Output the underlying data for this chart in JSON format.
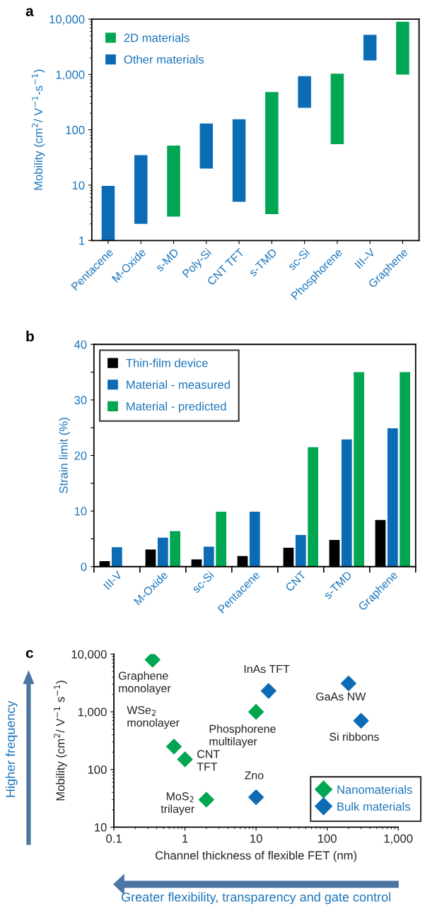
{
  "chart_data": [
    {
      "type": "bar",
      "title": "a",
      "ylabel": "Mobility (cm$^{2}$/ V$^{−1}$-s$^{−1}$)",
      "log": "y",
      "categories": [
        "Pentacene",
        "M-Oxide",
        "s-MD",
        "Poly-Si",
        "CNT TFT",
        "s-TMD",
        "sc-Si",
        "Phosphorene",
        "III–V",
        "Graphene"
      ],
      "series": [
        {
          "name": "2D materials",
          "color": "#00a651",
          "base": [
            null,
            null,
            2.7,
            null,
            null,
            3,
            null,
            55,
            null,
            1000
          ],
          "values": [
            null,
            null,
            49.3,
            null,
            null,
            477,
            null,
            975,
            null,
            8000
          ]
        },
        {
          "name": "Other materials",
          "color": "#0b6cb5",
          "base": [
            1,
            2,
            null,
            20,
            5,
            null,
            250,
            null,
            1800,
            null
          ],
          "values": [
            8.7,
            33,
            null,
            110,
            150,
            null,
            680,
            null,
            3400,
            null
          ]
        }
      ],
      "ylim": [
        1,
        10000
      ],
      "yticks": [
        1,
        10,
        100,
        {
          "value": 1000,
          "label": "1,000"
        },
        {
          "value": 10000,
          "label": "10,000"
        }
      ],
      "legend": "top left"
    },
    {
      "type": "bar",
      "title": "b",
      "ylabel": "Strain limit (%)",
      "categories": [
        "III-V",
        "M-Oxide",
        "sc-Si",
        "Pentacene",
        "CNT",
        "s-TMD",
        "Graphene"
      ],
      "series": [
        {
          "name": "Thin-film device",
          "color": "#000000",
          "values": [
            1.0,
            3.1,
            1.3,
            1.9,
            3.4,
            4.8,
            8.4
          ]
        },
        {
          "name": "Material - measured",
          "color": "#0b6cb5",
          "values": [
            3.5,
            5.2,
            3.6,
            9.9,
            5.7,
            22.9,
            24.9
          ]
        },
        {
          "name": "Material - predicted",
          "color": "#00a651",
          "values": [
            null,
            6.4,
            9.9,
            null,
            21.5,
            35,
            35
          ]
        }
      ],
      "ylim": [
        0,
        40
      ],
      "yticks": [
        0,
        {
          "value": 5,
          "label": null
        },
        10,
        {
          "value": 15,
          "label": null
        },
        20,
        {
          "value": 25,
          "label": null
        },
        30,
        {
          "value": 35,
          "label": null
        },
        40
      ],
      "legend": "top left"
    },
    {
      "type": "scatter",
      "title": "c",
      "xlabel": "Channel thickness of flexible FET (nm)",
      "ylabel": "Mobility (cm$^{2}$/ V$^{−1}$ s$^{−1}$)",
      "log": "xy",
      "marker": "diamond",
      "series": [
        {
          "name": "Nanomaterials",
          "color": "#00a651",
          "x": [
            0.35,
            0.7,
            1,
            2,
            10
          ],
          "values": [
            8000,
            250,
            150,
            30,
            1000
          ]
        },
        {
          "name": "Bulk materials",
          "color": "#0b6cb5",
          "x": [
            15,
            200,
            300,
            10
          ],
          "values": [
            2300,
            3100,
            700,
            33
          ]
        }
      ],
      "xlim": [
        0.1,
        1000
      ],
      "xticks": [
        0.1,
        1,
        10,
        100,
        {
          "value": 1000,
          "label": "1,000"
        }
      ],
      "ylim": [
        10,
        10000
      ],
      "yticks": [
        10,
        100,
        {
          "value": 1000,
          "label": "1,000"
        },
        {
          "value": 10000,
          "label": "10,000"
        }
      ],
      "annotations": [
        {
          "text": "Graphene\nmonolayer",
          "x": 0.35,
          "y": 8000
        },
        {
          "text": "WSe$_{2}$\nmonolayer",
          "x": 0.7,
          "y": 250
        },
        {
          "text": "CNT\nTFT",
          "x": 1,
          "y": 150
        },
        {
          "text": "MoS$_{2}$\ntrilayer",
          "x": 2,
          "y": 30
        },
        {
          "text": "Phosphorene\nmultilayer",
          "x": 10,
          "y": 1000
        },
        {
          "text": "InAs TFT",
          "x": 15,
          "y": 2300
        },
        {
          "text": "GaAs NW",
          "x": 200,
          "y": 3100
        },
        {
          "text": "Si ribbons",
          "x": 300,
          "y": 700
        },
        {
          "text": "Zno",
          "x": 10,
          "y": 33
        },
        "Higher frequency",
        "Greater flexibility, transparency and gate control"
      ],
      "legend": "bottom right"
    }
  ]
}
